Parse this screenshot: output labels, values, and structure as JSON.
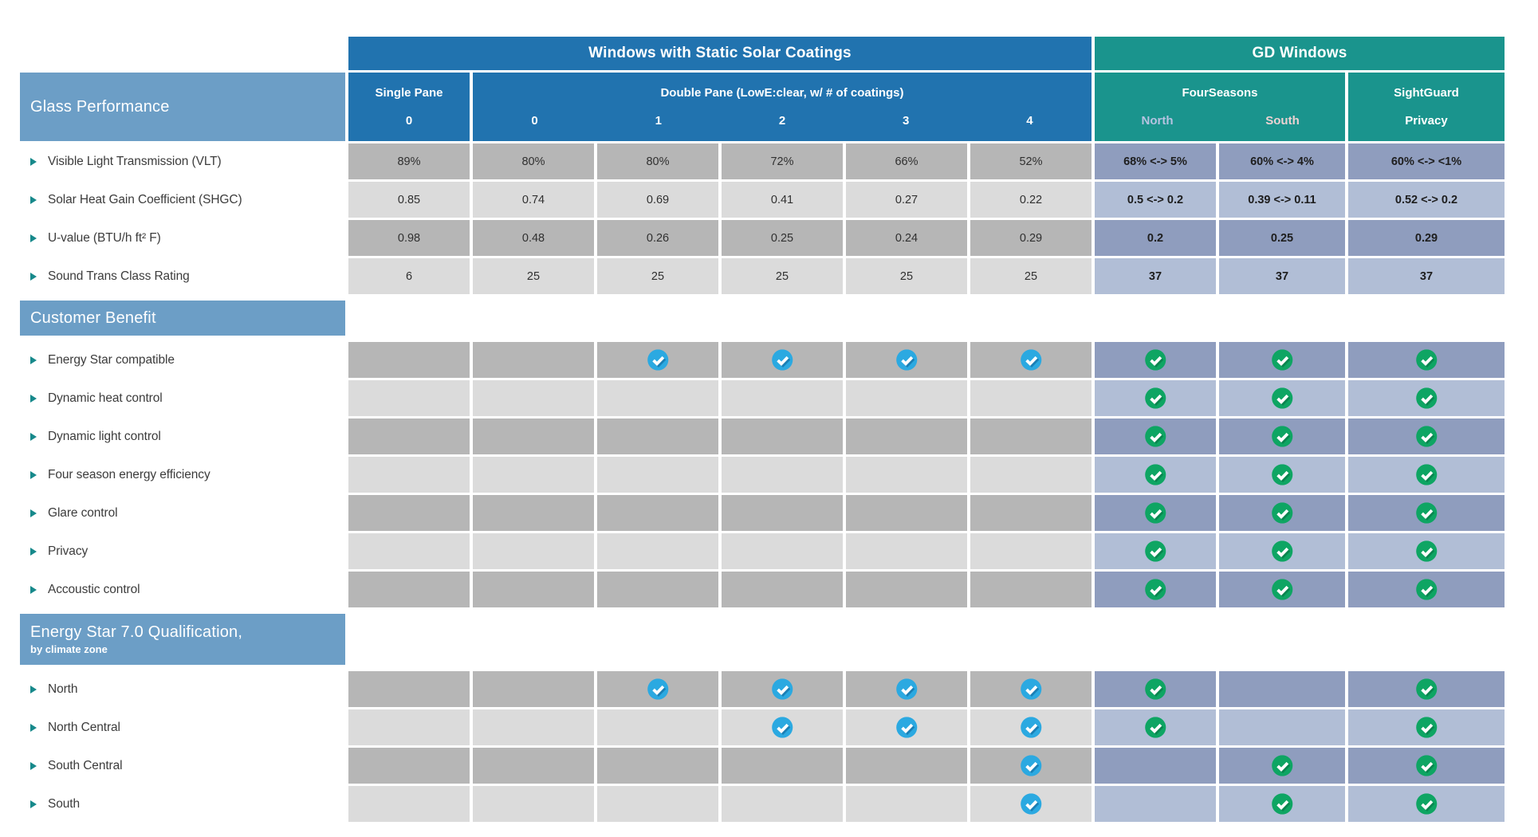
{
  "colors": {
    "blue_header": "#2173AF",
    "teal_header": "#1A948D",
    "section_bar": "#6C9EC6",
    "cell_dark": "#B6B6B6",
    "cell_light": "#DBDBDB",
    "gd_cell_dark": "#8F9DBE",
    "gd_cell_light": "#B1BED6",
    "check_blue": "#2BA9E1",
    "check_blue_shadow": "#1A7FB5",
    "check_green": "#0EA563",
    "check_green_shadow": "#0A854F",
    "north_label": "#B6C3E1",
    "south_label": "#EDD2D2",
    "bullet": "#17898B"
  },
  "header": {
    "static_title": "Windows with Static Solar Coatings",
    "gd_title": "GD Windows",
    "single_pane": {
      "label": "Single Pane",
      "number": "0"
    },
    "double_pane": {
      "label": "Double Pane (LowE:clear, w/ # of coatings)",
      "numbers": [
        "0",
        "1",
        "2",
        "3",
        "4"
      ]
    },
    "fourseasons": {
      "label": "FourSeasons",
      "columns": [
        "North",
        "South"
      ]
    },
    "sightguard": {
      "label": "SightGuard",
      "columns": [
        "Privacy"
      ]
    }
  },
  "sections": [
    {
      "id": "glass-performance",
      "title": "Glass Performance",
      "subtitle": "",
      "row_type": "values",
      "rows": [
        {
          "label": "Visible Light Transmission (VLT)",
          "static": [
            "89%",
            "80%",
            "80%",
            "72%",
            "66%",
            "52%"
          ],
          "gd": [
            "68% <-> 5%",
            "60% <-> 4%",
            "60% <-> <1%"
          ]
        },
        {
          "label": "Solar Heat Gain Coefficient (SHGC)",
          "static": [
            "0.85",
            "0.74",
            "0.69",
            "0.41",
            "0.27",
            "0.22"
          ],
          "gd": [
            "0.5 <-> 0.2",
            "0.39 <-> 0.11",
            "0.52 <-> 0.2"
          ]
        },
        {
          "label": "U-value (BTU/h ft² F)",
          "static": [
            "0.98",
            "0.48",
            "0.26",
            "0.25",
            "0.24",
            "0.29"
          ],
          "gd": [
            "0.2",
            "0.25",
            "0.29"
          ]
        },
        {
          "label": "Sound Trans Class Rating",
          "static": [
            "6",
            "25",
            "25",
            "25",
            "25",
            "25"
          ],
          "gd": [
            "37",
            "37",
            "37"
          ]
        }
      ]
    },
    {
      "id": "customer-benefit",
      "title": "Customer Benefit",
      "subtitle": "",
      "row_type": "checks",
      "rows": [
        {
          "label": "Energy Star compatible",
          "static": [
            false,
            false,
            true,
            true,
            true,
            true
          ],
          "gd": [
            true,
            true,
            true
          ]
        },
        {
          "label": "Dynamic heat control",
          "static": [
            false,
            false,
            false,
            false,
            false,
            false
          ],
          "gd": [
            true,
            true,
            true
          ]
        },
        {
          "label": "Dynamic light control",
          "static": [
            false,
            false,
            false,
            false,
            false,
            false
          ],
          "gd": [
            true,
            true,
            true
          ]
        },
        {
          "label": "Four season energy efficiency",
          "static": [
            false,
            false,
            false,
            false,
            false,
            false
          ],
          "gd": [
            true,
            true,
            true
          ]
        },
        {
          "label": "Glare control",
          "static": [
            false,
            false,
            false,
            false,
            false,
            false
          ],
          "gd": [
            true,
            true,
            true
          ]
        },
        {
          "label": "Privacy",
          "static": [
            false,
            false,
            false,
            false,
            false,
            false
          ],
          "gd": [
            true,
            true,
            true
          ]
        },
        {
          "label": "Accoustic control",
          "static": [
            false,
            false,
            false,
            false,
            false,
            false
          ],
          "gd": [
            true,
            true,
            true
          ]
        }
      ]
    },
    {
      "id": "energy-star-qualification",
      "title": "Energy Star 7.0 Qualification,",
      "subtitle": "by climate zone",
      "row_type": "checks",
      "rows": [
        {
          "label": "North",
          "static": [
            false,
            false,
            true,
            true,
            true,
            true
          ],
          "gd": [
            true,
            false,
            true
          ]
        },
        {
          "label": "North Central",
          "static": [
            false,
            false,
            false,
            true,
            true,
            true
          ],
          "gd": [
            true,
            false,
            true
          ]
        },
        {
          "label": "South Central",
          "static": [
            false,
            false,
            false,
            false,
            false,
            true
          ],
          "gd": [
            false,
            true,
            true
          ]
        },
        {
          "label": "South",
          "static": [
            false,
            false,
            false,
            false,
            false,
            true
          ],
          "gd": [
            false,
            true,
            true
          ]
        }
      ]
    }
  ]
}
